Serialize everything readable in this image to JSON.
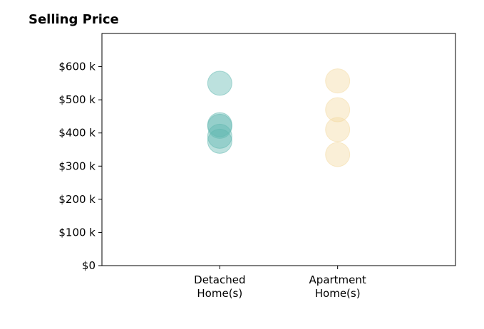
{
  "chart_data": {
    "type": "scatter",
    "title": "Selling Price",
    "xlabel": "",
    "ylabel": "",
    "categories": [
      [
        "Detached",
        "Home(s)"
      ],
      [
        "Apartment",
        "Home(s)"
      ]
    ],
    "x_range": [
      -1,
      2
    ],
    "ylim": [
      0,
      700000
    ],
    "y_ticks": [
      0,
      100000,
      200000,
      300000,
      400000,
      500000,
      600000
    ],
    "y_tick_labels": [
      "$0",
      "$100 k",
      "$200 k",
      "$300 k",
      "$400 k",
      "$500 k",
      "$600 k"
    ],
    "grid": false,
    "legend": "none",
    "series": [
      {
        "category": 0,
        "color": "#5fb8b0",
        "values": [
          550000,
          425000,
          420000,
          390000,
          375000
        ]
      },
      {
        "category": 1,
        "color": "#f3d9a0",
        "values": [
          557000,
          470000,
          410000,
          335000
        ]
      }
    ]
  }
}
